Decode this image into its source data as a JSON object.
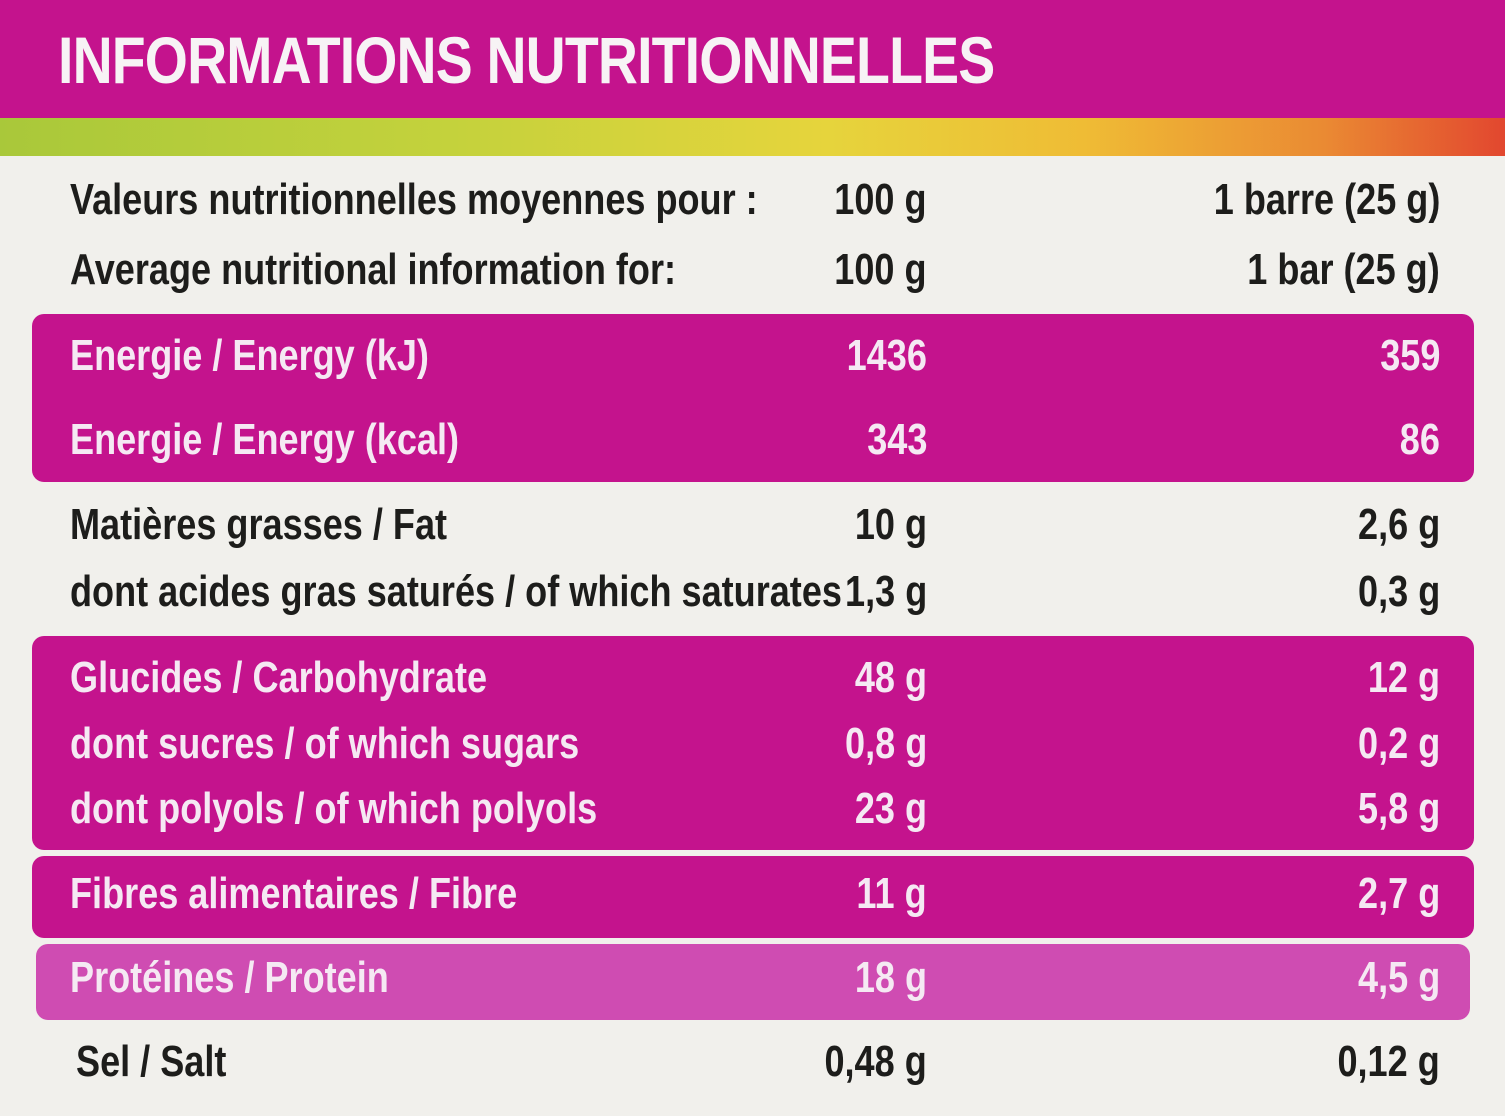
{
  "title": "INFORMATIONS NUTRITIONNELLES",
  "colors": {
    "brand_magenta": "#c4138d",
    "protein_band": "#cf4cb2",
    "background": "#f1f0ec",
    "text_dark": "#1d1d1b"
  },
  "header_rows": [
    {
      "label": "Valeurs nutritionnelles moyennes pour :",
      "per_100g": "100 g",
      "per_bar": "1 barre (25 g)"
    },
    {
      "label": "Average nutritional information for:",
      "per_100g": "100 g",
      "per_bar": "1 bar (25 g)"
    }
  ],
  "nutrients": [
    {
      "label": "Energie / Energy (kJ)",
      "per_100g": "1436",
      "per_bar": "359"
    },
    {
      "label": "Energie / Energy (kcal)",
      "per_100g": "343",
      "per_bar": "86"
    },
    {
      "label": "Matières grasses / Fat",
      "per_100g": "10 g",
      "per_bar": "2,6 g"
    },
    {
      "label": "dont acides gras saturés / of which saturates",
      "per_100g": "1,3 g",
      "per_bar": "0,3 g"
    },
    {
      "label": "Glucides / Carbohydrate",
      "per_100g": "48 g",
      "per_bar": "12 g"
    },
    {
      "label": "dont sucres / of which sugars",
      "per_100g": "0,8 g",
      "per_bar": "0,2 g"
    },
    {
      "label": "dont polyols / of which polyols",
      "per_100g": "23 g",
      "per_bar": "5,8 g"
    },
    {
      "label": "Fibres alimentaires / Fibre",
      "per_100g": "11 g",
      "per_bar": "2,7 g"
    },
    {
      "label": "Protéines / Protein",
      "per_100g": "18 g",
      "per_bar": "4,5 g"
    },
    {
      "label": "Sel / Salt",
      "per_100g": "0,48 g",
      "per_bar": "0,12 g"
    }
  ]
}
